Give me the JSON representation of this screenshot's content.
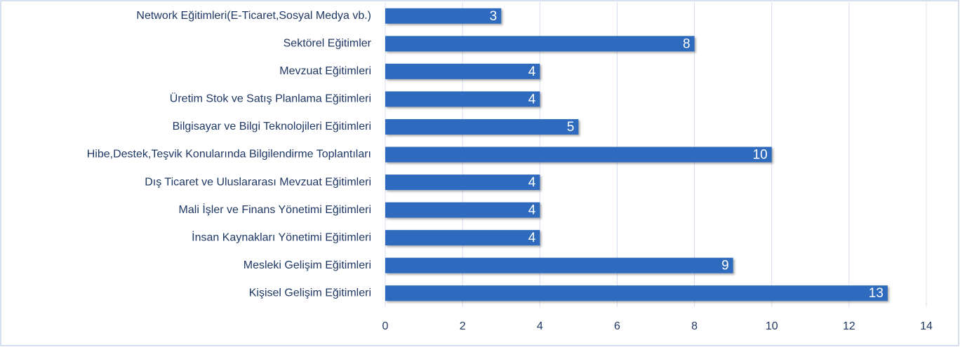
{
  "chart_data": {
    "type": "bar",
    "orientation": "horizontal",
    "categories": [
      "Network Eğitimleri(E-Ticaret,Sosyal Medya vb.)",
      "Sektörel Eğitimler",
      "Mevzuat Eğitimleri",
      "Üretim Stok ve Satış Planlama Eğitimleri",
      "Bilgisayar ve Bilgi Teknolojileri Eğitimleri",
      "Hibe,Destek,Teşvik Konularında  Bilgilendirme Toplantıları",
      "Dış Ticaret ve Uluslararası Mevzuat Eğitimleri",
      "Mali İşler ve Finans Yönetimi Eğitimleri",
      "İnsan Kaynakları Yönetimi Eğitimleri",
      "Mesleki Gelişim Eğitimleri",
      "Kişisel Gelişim Eğitimleri"
    ],
    "values": [
      3,
      8,
      4,
      4,
      5,
      10,
      4,
      4,
      4,
      9,
      13
    ],
    "color": "#2e6bbd",
    "xlim": [
      0,
      14
    ],
    "xticks": [
      0,
      2,
      4,
      6,
      8,
      10,
      12,
      14
    ],
    "grid": true
  }
}
